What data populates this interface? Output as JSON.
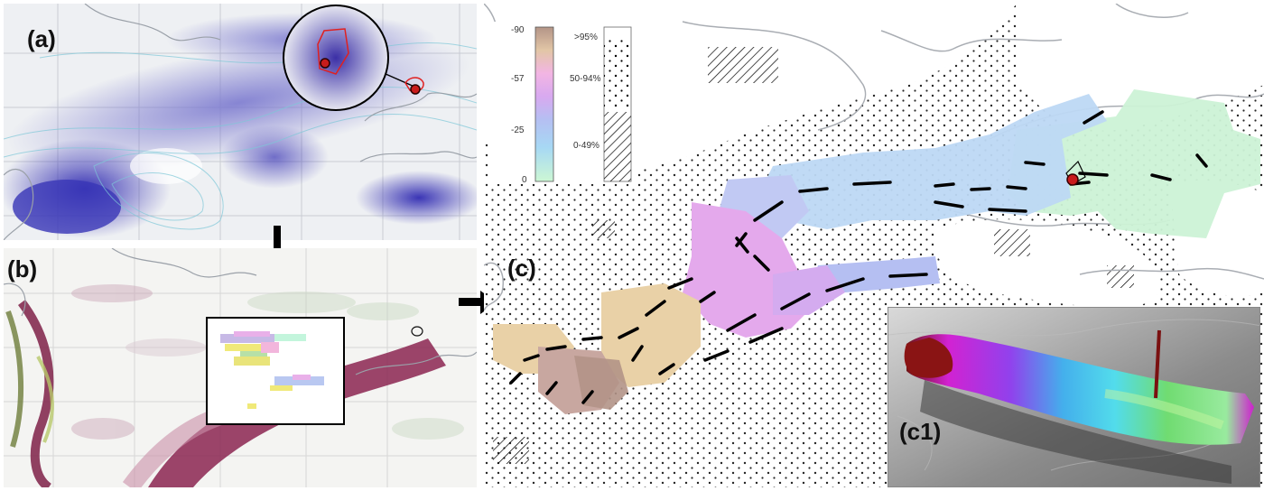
{
  "panels": {
    "a": {
      "label": "(a)"
    },
    "b": {
      "label": "(b)"
    },
    "c": {
      "label": "(c)"
    },
    "c1": {
      "label": "(c1)"
    }
  },
  "legend": {
    "scale_ticks": [
      "-90",
      "-57",
      "-25",
      "0"
    ],
    "categories": [
      ">95%",
      "50-94%",
      "0-49%"
    ],
    "colors": [
      "#b39487",
      "#e9b0e9",
      "#bccaf0",
      "#ccf2d6"
    ]
  },
  "icons": [
    "down-arrow-icon",
    "right-arrow-icon"
  ]
}
